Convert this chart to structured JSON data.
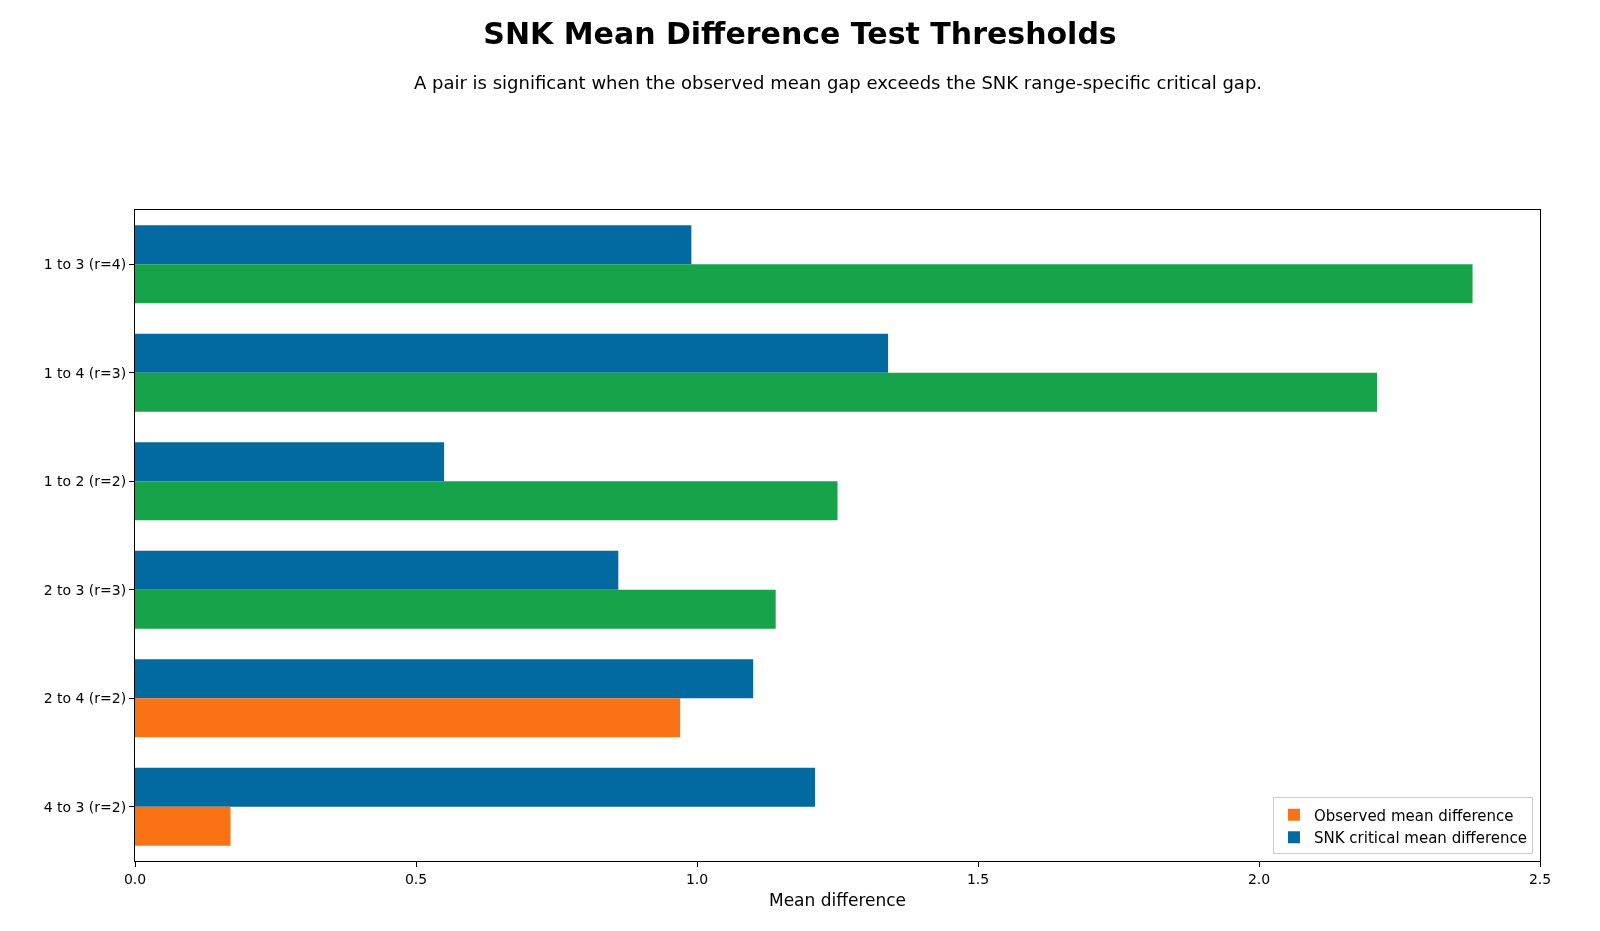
{
  "chart_data": {
    "type": "bar",
    "orientation": "horizontal",
    "title": "SNK Mean Difference Test Thresholds",
    "subtitle": "A pair is significant when the observed mean gap exceeds the SNK range-specific critical gap.",
    "xlabel": "Mean difference",
    "categories": [
      "1 to 3 (r=4)",
      "1 to 4 (r=3)",
      "1 to 2 (r=2)",
      "2 to 3 (r=3)",
      "2 to 4 (r=2)",
      "4 to 3 (r=2)"
    ],
    "series": [
      {
        "name": "Observed mean difference",
        "color": "#f97316",
        "colors": [
          "#16a34a",
          "#16a34a",
          "#16a34a",
          "#16a34a",
          "#f97316",
          "#f97316"
        ],
        "values": [
          2.38,
          2.21,
          1.25,
          1.14,
          0.97,
          0.17
        ]
      },
      {
        "name": "SNK critical mean difference",
        "color": "#0369a1",
        "values": [
          0.99,
          1.34,
          0.55,
          0.86,
          1.1,
          1.21
        ]
      }
    ],
    "xlim": [
      0,
      2.5
    ],
    "xticks": [
      {
        "value": 0,
        "label": "0.0"
      },
      {
        "value": 0.5,
        "label": "0.5"
      },
      {
        "value": 1,
        "label": "1.0"
      },
      {
        "value": 1.5,
        "label": "1.5"
      },
      {
        "value": 2,
        "label": "2.0"
      },
      {
        "value": 2.5,
        "label": "2.5"
      }
    ],
    "grid": false,
    "legend": "bottom right"
  }
}
